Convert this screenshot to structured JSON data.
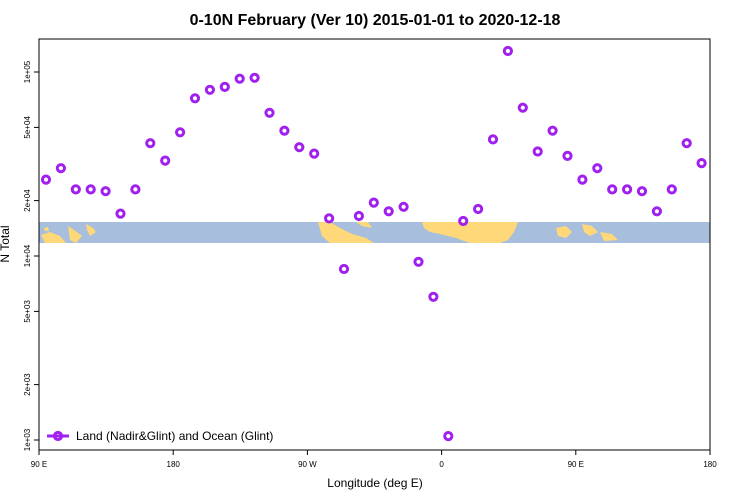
{
  "chart_data": {
    "type": "scatter",
    "title": "0-10N February (Ver 10)   2015-01-01 to 2020-12-18",
    "xlabel": "Longitude (deg E)",
    "ylabel": "N Total",
    "x_ticks": [
      "90 E",
      "180",
      "90 W",
      "0",
      "90 E",
      "180"
    ],
    "y_ticks": [
      "1e+03",
      "2e+03",
      "5e+03",
      "1e+04",
      "2e+04",
      "5e+04",
      "1e+05"
    ],
    "y_scale": "log",
    "ylim": [
      1000,
      150000
    ],
    "legend": "Land (Nadir&Glint) and Ocean (Glint)",
    "series_color": "#a020f0",
    "land_color": "#ffd87a",
    "ocean_color": "#a8bedd",
    "series": [
      {
        "name": "Land (Nadir&Glint) and Ocean (Glint)",
        "values": [
          26000,
          30000,
          23000,
          23000,
          22500,
          17000,
          23000,
          41000,
          33000,
          47000,
          72000,
          80000,
          83000,
          92000,
          93000,
          60000,
          48000,
          39000,
          36000,
          16000,
          8500,
          16500,
          19500,
          17500,
          18500,
          9300,
          6000,
          1050,
          15500,
          18000,
          43000,
          130000,
          64000,
          37000,
          48000,
          35000,
          26000,
          30000,
          23000,
          23000,
          22500,
          17500,
          23000,
          41000,
          32000
        ]
      }
    ]
  }
}
